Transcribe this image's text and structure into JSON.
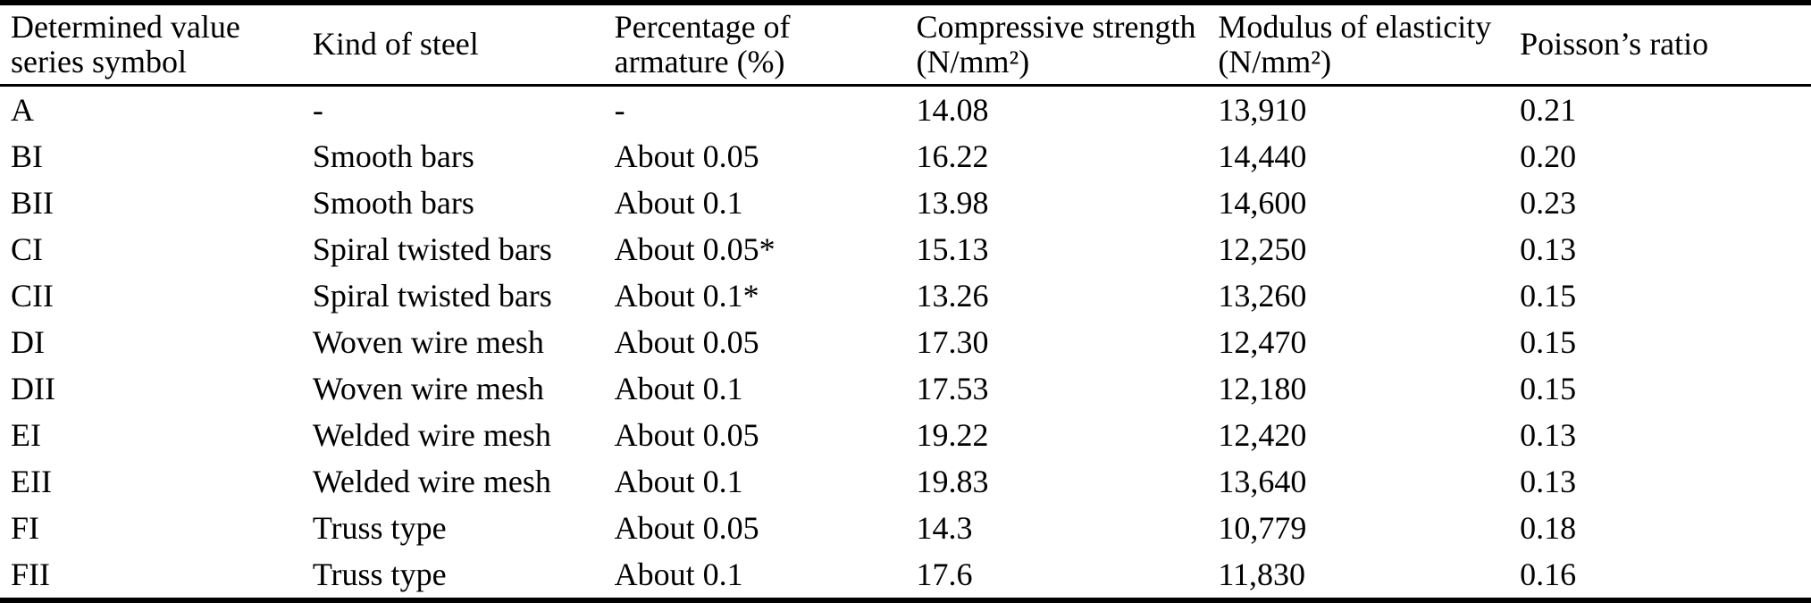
{
  "colors": {
    "text": "#000000",
    "background": "#ffffff",
    "rule": "#000000"
  },
  "table": {
    "columns": [
      "Determined value series symbol",
      "Kind of steel",
      "Percentage of armature (%)",
      "Compressive strength (N/mm²)",
      "Modulus of elasticity (N/mm²)",
      "Poisson’s ratio"
    ],
    "rows": [
      [
        "A",
        "-",
        "-",
        "14.08",
        "13,910",
        "0.21"
      ],
      [
        "BI",
        "Smooth bars",
        "About 0.05",
        "16.22",
        "14,440",
        "0.20"
      ],
      [
        "BII",
        "Smooth bars",
        "About 0.1",
        "13.98",
        "14,600",
        "0.23"
      ],
      [
        "CI",
        "Spiral twisted bars",
        "About 0.05*",
        "15.13",
        "12,250",
        "0.13"
      ],
      [
        "CII",
        "Spiral twisted bars",
        "About 0.1*",
        "13.26",
        "13,260",
        "0.15"
      ],
      [
        "DI",
        "Woven wire mesh",
        "About 0.05",
        "17.30",
        "12,470",
        "0.15"
      ],
      [
        "DII",
        "Woven wire mesh",
        "About 0.1",
        "17.53",
        "12,180",
        "0.15"
      ],
      [
        "EI",
        "Welded wire mesh",
        "About 0.05",
        "19.22",
        "12,420",
        "0.13"
      ],
      [
        "EII",
        "Welded wire mesh",
        "About 0.1",
        "19.83",
        "13,640",
        "0.13"
      ],
      [
        "FI",
        "Truss type",
        "About 0.05",
        "14.3",
        "10,779",
        "0.18"
      ],
      [
        "FII",
        "Truss type",
        "About 0.1",
        "17.6",
        "11,830",
        "0.16"
      ]
    ]
  }
}
